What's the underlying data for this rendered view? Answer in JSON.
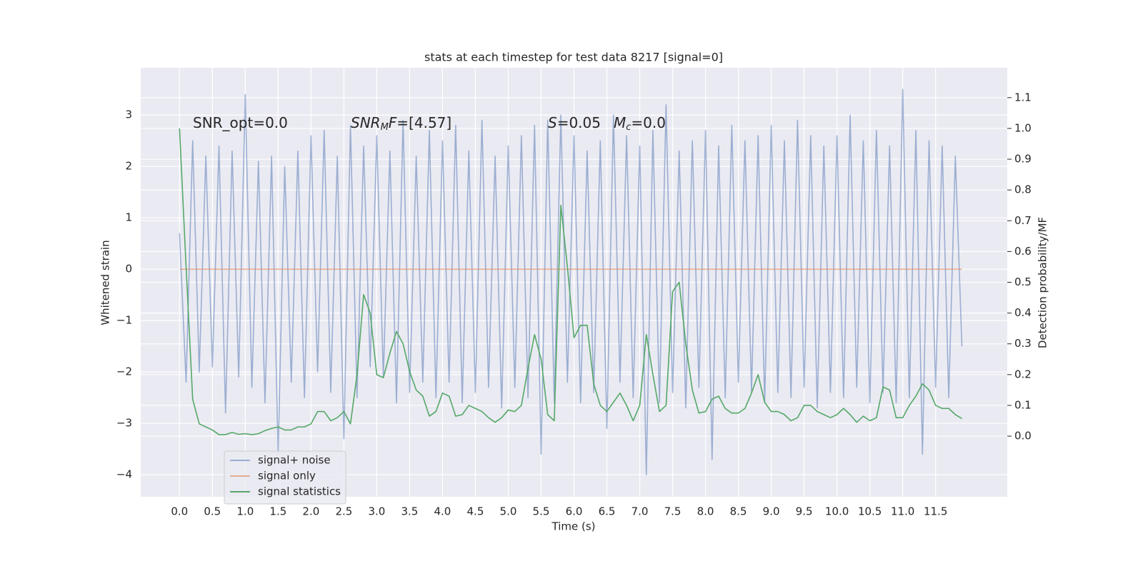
{
  "chart_data": {
    "type": "line",
    "title": "stats at each timestep for test data 8217 [signal=0]",
    "xlabel": "Time (s)",
    "ylabel": "Whitened strain",
    "y2label": "Detection probability/MF",
    "annotations": [
      [
        {
          "text": "SNR_opt=0.0"
        }
      ],
      [
        {
          "text": "SNR",
          "style": "italic"
        },
        {
          "text": "M",
          "style": "sub"
        },
        {
          "text": "F",
          "style": "italic"
        },
        {
          "text": "=[4.57]"
        }
      ],
      [
        {
          "text": "S",
          "style": "italic"
        },
        {
          "text": "=0.05"
        }
      ],
      [
        {
          "text": "M",
          "style": "italic"
        },
        {
          "text": "c",
          "style": "sub"
        },
        {
          "text": "=0.0"
        }
      ]
    ],
    "x": [
      0.0,
      0.1,
      0.2,
      0.3,
      0.4,
      0.5,
      0.6,
      0.7,
      0.8,
      0.9,
      1.0,
      1.1,
      1.2,
      1.3,
      1.4,
      1.5,
      1.6,
      1.7,
      1.8,
      1.9,
      2.0,
      2.1,
      2.2,
      2.3,
      2.4,
      2.5,
      2.6,
      2.7,
      2.8,
      2.9,
      3.0,
      3.1,
      3.2,
      3.3,
      3.4,
      3.5,
      3.6,
      3.7,
      3.8,
      3.9,
      4.0,
      4.1,
      4.2,
      4.3,
      4.4,
      4.5,
      4.6,
      4.7,
      4.8,
      4.9,
      5.0,
      5.1,
      5.2,
      5.3,
      5.4,
      5.5,
      5.6,
      5.7,
      5.8,
      5.9,
      6.0,
      6.1,
      6.2,
      6.3,
      6.4,
      6.5,
      6.6,
      6.7,
      6.8,
      6.9,
      7.0,
      7.1,
      7.2,
      7.3,
      7.4,
      7.5,
      7.6,
      7.7,
      7.8,
      7.9,
      8.0,
      8.1,
      8.2,
      8.3,
      8.4,
      8.5,
      8.6,
      8.7,
      8.8,
      8.9,
      9.0,
      9.1,
      9.2,
      9.3,
      9.4,
      9.5,
      9.6,
      9.7,
      9.8,
      9.9,
      10.0,
      10.1,
      10.2,
      10.3,
      10.4,
      10.5,
      10.6,
      10.7,
      10.8,
      10.9,
      11.0,
      11.1,
      11.2,
      11.3,
      11.4,
      11.5,
      11.6,
      11.7,
      11.8,
      11.9
    ],
    "series": [
      {
        "name": "signal+ noise",
        "color": "#4c72b0",
        "opacity": 0.5,
        "values": [
          0.7,
          -2.2,
          2.5,
          -2.0,
          2.2,
          -1.9,
          2.4,
          -2.8,
          2.3,
          -2.1,
          3.4,
          -2.3,
          2.1,
          -2.6,
          2.2,
          -3.6,
          2.0,
          -2.2,
          2.3,
          -2.5,
          2.6,
          -2.0,
          2.7,
          -2.4,
          2.2,
          -3.3,
          2.8,
          -2.5,
          2.4,
          -1.9,
          2.6,
          -2.1,
          2.3,
          -2.6,
          2.9,
          -2.4,
          2.2,
          -2.2,
          2.7,
          -2.5,
          2.5,
          -2.2,
          2.8,
          -2.6,
          2.3,
          -2.4,
          2.9,
          -2.3,
          2.2,
          -2.7,
          2.4,
          -2.3,
          2.6,
          -2.5,
          2.8,
          -3.6,
          2.9,
          -2.6,
          3.0,
          -2.2,
          2.6,
          -2.6,
          2.3,
          -2.4,
          2.5,
          -3.1,
          3.0,
          -2.2,
          2.6,
          -2.5,
          2.4,
          -4.0,
          2.7,
          -2.6,
          3.2,
          -2.4,
          2.3,
          -2.7,
          2.5,
          -2.3,
          2.7,
          -3.7,
          2.4,
          -2.5,
          2.8,
          -2.2,
          2.5,
          -2.4,
          2.6,
          -2.6,
          2.8,
          -2.4,
          2.5,
          -2.5,
          2.9,
          -2.3,
          2.6,
          -2.7,
          2.4,
          -2.4,
          2.6,
          -2.5,
          3.0,
          -2.3,
          2.5,
          -2.6,
          2.7,
          -2.4,
          2.4,
          -2.6,
          3.5,
          -2.5,
          2.7,
          -3.6,
          2.5,
          -2.3,
          2.4,
          -2.5,
          2.2,
          -1.5
        ]
      },
      {
        "name": "signal only",
        "color": "#dd8452",
        "opacity": 0.6,
        "x": [
          0.0,
          11.9
        ],
        "values": [
          0,
          0
        ]
      },
      {
        "name": "signal statistics",
        "color": "#55a868",
        "opacity": 1,
        "axis": "y2",
        "values": [
          1.0,
          0.55,
          0.12,
          0.04,
          0.03,
          0.02,
          0.005,
          0.005,
          0.012,
          0.006,
          0.008,
          0.005,
          0.008,
          0.018,
          0.025,
          0.03,
          0.02,
          0.02,
          0.03,
          0.03,
          0.04,
          0.08,
          0.08,
          0.05,
          0.06,
          0.08,
          0.04,
          0.2,
          0.46,
          0.4,
          0.2,
          0.19,
          0.27,
          0.34,
          0.3,
          0.21,
          0.15,
          0.13,
          0.065,
          0.08,
          0.14,
          0.13,
          0.065,
          0.07,
          0.1,
          0.09,
          0.08,
          0.06,
          0.045,
          0.06,
          0.085,
          0.08,
          0.1,
          0.22,
          0.33,
          0.25,
          0.07,
          0.05,
          0.75,
          0.55,
          0.32,
          0.36,
          0.36,
          0.17,
          0.1,
          0.08,
          0.11,
          0.14,
          0.1,
          0.05,
          0.1,
          0.33,
          0.2,
          0.08,
          0.1,
          0.47,
          0.5,
          0.3,
          0.15,
          0.075,
          0.08,
          0.12,
          0.13,
          0.09,
          0.075,
          0.075,
          0.09,
          0.14,
          0.2,
          0.11,
          0.08,
          0.08,
          0.07,
          0.05,
          0.06,
          0.1,
          0.1,
          0.08,
          0.07,
          0.06,
          0.07,
          0.09,
          0.07,
          0.045,
          0.065,
          0.05,
          0.06,
          0.16,
          0.15,
          0.06,
          0.06,
          0.1,
          0.13,
          0.17,
          0.15,
          0.1,
          0.09,
          0.09,
          0.07,
          0.057
        ]
      }
    ],
    "xlim": [
      -0.59,
      12.59
    ],
    "xticks": [
      {
        "value": 0,
        "label": "0.0"
      },
      0.5,
      {
        "value": 1,
        "label": "1.0"
      },
      1.5,
      {
        "value": 2,
        "label": "2.0"
      },
      2.5,
      {
        "value": 3,
        "label": "3.0"
      },
      3.5,
      {
        "value": 4,
        "label": "4.0"
      },
      4.5,
      {
        "value": 5,
        "label": "5.0"
      },
      5.5,
      {
        "value": 6,
        "label": "6.0"
      },
      6.5,
      {
        "value": 7,
        "label": "7.0"
      },
      7.5,
      {
        "value": 8,
        "label": "8.0"
      },
      8.5,
      {
        "value": 9,
        "label": "9.0"
      },
      9.5,
      {
        "value": 10,
        "label": "10.0"
      },
      10.5,
      {
        "value": 11,
        "label": "11.0"
      },
      11.5
    ],
    "ylim": [
      -4.43,
      3.92
    ],
    "yticks": [
      {
        "value": -4,
        "label": "−4"
      },
      {
        "value": -3,
        "label": "−3"
      },
      {
        "value": -2,
        "label": "−2"
      },
      {
        "value": -1,
        "label": "−1"
      },
      0,
      1,
      2,
      3
    ],
    "y2lim": [
      -0.197,
      1.197
    ],
    "y2ticks": [
      {
        "value": 0,
        "label": "0.0"
      },
      0.1,
      0.2,
      0.3,
      0.4,
      0.5,
      0.6,
      0.7,
      0.8,
      0.9,
      {
        "value": 1,
        "label": "1.0"
      },
      1.1
    ],
    "grid": true,
    "legend": "lower left",
    "background": "#eaeaf2"
  }
}
